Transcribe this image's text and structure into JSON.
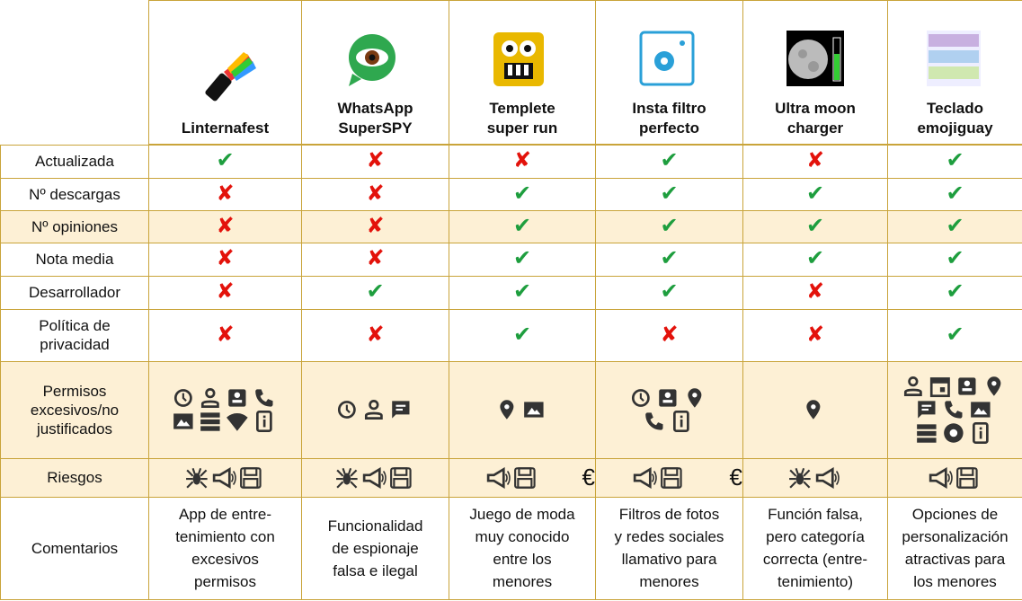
{
  "columns": [
    {
      "name_lines": [
        "Linternafest"
      ]
    },
    {
      "name_lines": [
        "WhatsApp",
        "SuperSPY"
      ]
    },
    {
      "name_lines": [
        "Templete",
        "super run"
      ]
    },
    {
      "name_lines": [
        "Insta filtro",
        "perfecto"
      ]
    },
    {
      "name_lines": [
        "Ultra moon",
        "charger"
      ]
    },
    {
      "name_lines": [
        "Teclado",
        "emojiguay"
      ]
    }
  ],
  "rows": [
    {
      "label_lines": [
        "Actualizada"
      ],
      "cells": [
        "✔",
        "✘",
        "✘",
        "✔",
        "✘",
        "✔"
      ]
    },
    {
      "label_lines": [
        "Nº descargas"
      ],
      "cells": [
        "✘",
        "✘",
        "✔",
        "✔",
        "✔",
        "✔"
      ]
    },
    {
      "label_lines": [
        "Nº opiniones"
      ],
      "cells": [
        "✘",
        "✘",
        "✔",
        "✔",
        "✔",
        "✔"
      ]
    },
    {
      "label_lines": [
        "Nota media"
      ],
      "cells": [
        "✘",
        "✘",
        "✔",
        "✔",
        "✔",
        "✔"
      ]
    },
    {
      "label_lines": [
        "Desarrollador"
      ],
      "cells": [
        "✘",
        "✔",
        "✔",
        "✔",
        "✘",
        "✔"
      ]
    },
    {
      "label_lines": [
        "Política de",
        "privacidad"
      ],
      "cells": [
        "✘",
        "✘",
        "✔",
        "✘",
        "✘",
        "✔"
      ]
    }
  ],
  "permissions": {
    "label_lines": [
      "Permisos",
      "excesivos/no",
      "justificados"
    ]
  },
  "risks": {
    "label_lines": [
      "Riesgos"
    ],
    "euro": "€"
  },
  "comments": {
    "label_lines": [
      "Comentarios"
    ],
    "cells": [
      [
        "App de entre-",
        "tenimiento con",
        "excesivos",
        "permisos"
      ],
      [
        "Funcionalidad",
        "de espionaje",
        "falsa e ilegal"
      ],
      [
        "Juego de moda",
        "muy conocido",
        "entre los",
        "menores"
      ],
      [
        "Filtros de fotos",
        "y redes sociales",
        "llamativo para",
        "menores"
      ],
      [
        "Función falsa,",
        "pero categoría",
        "correcta (entre-",
        "tenimiento)"
      ],
      [
        "Opciones de",
        "personalización",
        "atractivas para",
        "los menores"
      ]
    ]
  }
}
